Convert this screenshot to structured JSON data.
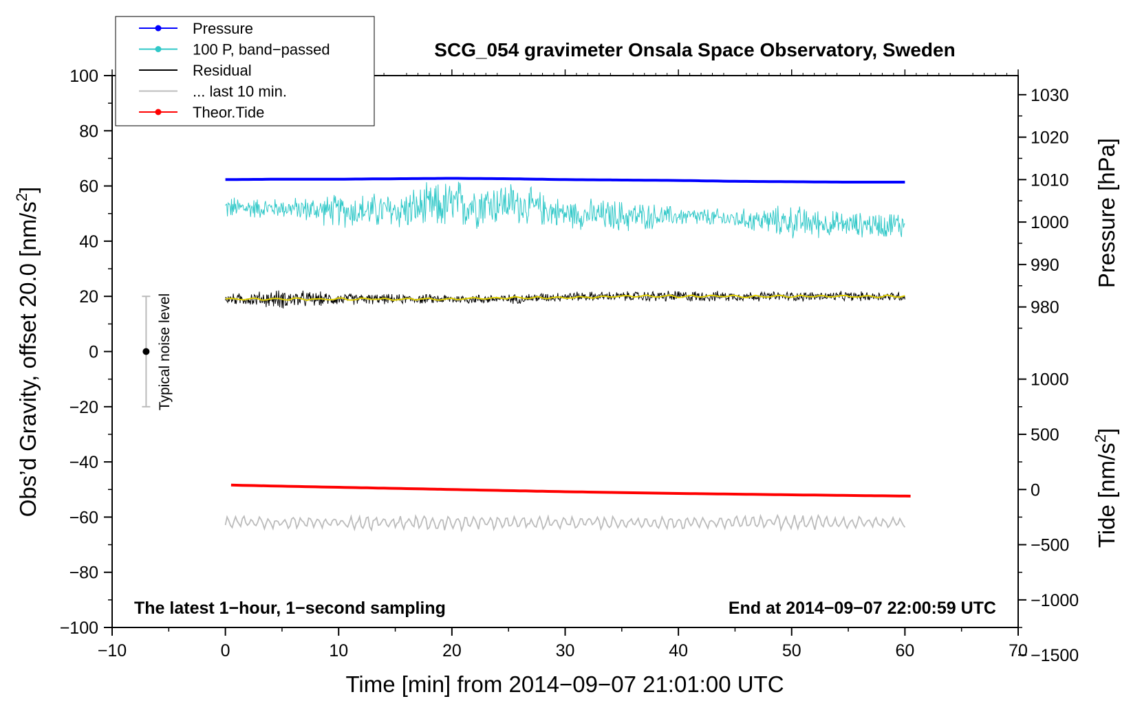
{
  "chart_data": {
    "type": "line",
    "title": "SCG_054 gravimeter Onsala Space Observatory, Sweden",
    "xlabel": "Time [min] from 2014−09−07 21:01:00 UTC",
    "ylabel_left_main": "Obs’d Gravity, offset 20.0 [nm/s",
    "ylabel_left_sup": "2",
    "ylabel_left_end": "]",
    "ylabel_right_top": "Pressure [hPa]",
    "ylabel_right_bottom_main": "Tide [nm/s",
    "ylabel_right_bottom_sup": "2",
    "ylabel_right_bottom_end": "]",
    "xlim": [
      -10,
      70
    ],
    "ylim": [
      -100,
      100
    ],
    "xticks": [
      "−10",
      "0",
      "10",
      "20",
      "30",
      "40",
      "50",
      "60",
      "70"
    ],
    "yticks": [
      "100",
      "80",
      "60",
      "40",
      "20",
      "0",
      "−20",
      "−40",
      "−60",
      "−80",
      "−100"
    ],
    "pressure_axis": {
      "ticks": [
        "1030",
        "1020",
        "1010",
        "1000",
        "990",
        "980"
      ],
      "ticks_values": [
        1030,
        1020,
        1010,
        1000,
        990,
        980
      ],
      "mapping": {
        "value_at_gravity_0": 969.5,
        "units_per_gravity_unit": 0.65
      }
    },
    "tide_axis": {
      "ticks": [
        "1000",
        "500",
        "0",
        "−500",
        "−1000",
        "−1500"
      ],
      "ticks_values": [
        1000,
        500,
        0,
        -500,
        -1000,
        -1500
      ],
      "mapping": {
        "gravity_at_0": -50,
        "units_per_gravity_unit": 25
      }
    },
    "annotation_left": "The latest 1−hour, 1−second sampling",
    "annotation_right": "End at 2014−09−07 22:00:59 UTC",
    "noise_label": "Typical noise level",
    "noise_bar": {
      "x": -7,
      "center": 0,
      "low": -20,
      "high": 20
    },
    "legend_position": "top-left",
    "legend": [
      {
        "label": "Pressure",
        "color": "#0000ff",
        "marker": true
      },
      {
        "label": "100 P, band−passed",
        "color": "#30c8c8",
        "marker": true
      },
      {
        "label": "Residual",
        "color": "#000000",
        "marker": false
      },
      {
        "label": "... last 10 min.",
        "color": "#bbbbbb",
        "marker": false
      },
      {
        "label": "Theor.Tide",
        "color": "#ff0000",
        "marker": true
      }
    ],
    "series": [
      {
        "name": "Pressure",
        "color": "#0000ff",
        "x": [
          0,
          5,
          10,
          15,
          20,
          25,
          30,
          35,
          40,
          45,
          50,
          55,
          60
        ],
        "y": [
          1010.0,
          1010.1,
          1010.1,
          1010.2,
          1010.3,
          1010.2,
          1010.0,
          1009.9,
          1009.8,
          1009.6,
          1009.5,
          1009.4,
          1009.4
        ],
        "y_units": "hPa"
      },
      {
        "name": "100 P, band−passed",
        "color": "#30c8c8",
        "x": [
          0,
          5,
          10,
          15,
          20,
          25,
          30,
          35,
          40,
          45,
          50,
          55,
          60
        ],
        "y": [
          52,
          52,
          51,
          51,
          53,
          54,
          50,
          49,
          49,
          48,
          47,
          46,
          46
        ],
        "amplitude": [
          5,
          4,
          7,
          8,
          11,
          9,
          6,
          7,
          4,
          4,
          7,
          5,
          6
        ],
        "y_units": "gravity axis"
      },
      {
        "name": "Residual",
        "color": "#000000",
        "x": [
          0,
          5,
          10,
          15,
          20,
          25,
          30,
          35,
          40,
          45,
          50,
          55,
          60
        ],
        "y": [
          19,
          19,
          19,
          19,
          19,
          19,
          20,
          20,
          20,
          20,
          20,
          20,
          20
        ],
        "amplitude": [
          2,
          4,
          2.5,
          2,
          2,
          2,
          2,
          2,
          2.5,
          2,
          2,
          2,
          2
        ],
        "y_units": "nm/s^2"
      },
      {
        "name": "smoothed residual",
        "color": "#e0d000",
        "x": [
          0,
          5,
          10,
          15,
          20,
          25,
          30,
          35,
          40,
          45,
          50,
          55,
          60
        ],
        "y": [
          19,
          19,
          19,
          19,
          19,
          19.5,
          19.5,
          20,
          20,
          20,
          20,
          20,
          20
        ],
        "y_units": "nm/s^2"
      },
      {
        "name": "... last 10 min.",
        "color": "#bbbbbb",
        "x": [
          0,
          5,
          10,
          15,
          20,
          25,
          30,
          35,
          40,
          45,
          50,
          55,
          60
        ],
        "y": [
          -62,
          -62,
          -62,
          -62,
          -62,
          -62,
          -62,
          -62,
          -62,
          -62,
          -62,
          -62,
          -62
        ],
        "amplitude": [
          2,
          2,
          2,
          2.5,
          2.5,
          2,
          2,
          2,
          2,
          2,
          2.5,
          2,
          2
        ],
        "y_units": "gravity axis"
      },
      {
        "name": "Theor.Tide",
        "color": "#ff0000",
        "x": [
          0.5,
          5,
          10,
          15,
          20,
          25,
          30,
          35,
          40,
          45,
          50,
          55,
          60.5
        ],
        "y": [
          40,
          30,
          20,
          10,
          0,
          -10,
          -20,
          -28,
          -36,
          -42,
          -48,
          -54,
          -60
        ],
        "y_units": "nm/s^2"
      }
    ]
  }
}
